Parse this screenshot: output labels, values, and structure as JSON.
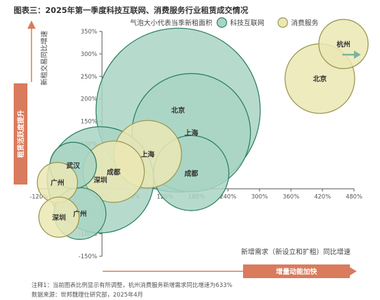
{
  "title": "图表三：2025年第一季度科技互联网、消费服务行业租赁成交情况",
  "legend": {
    "size_note": "气泡大小代表当季新租面积",
    "items": [
      "科技互联网",
      "消费服务"
    ]
  },
  "y_axis_title": "新租交易同比增速",
  "x_axis_title": "新增需求（新设立和扩租）同比增速",
  "left_banner": "租赁活跃度提升",
  "bottom_banner": "增量动能加快",
  "footnote": "注释1：当前图表比例显示有所调整，杭州消费服务新增需求同比增速为633%",
  "source": "数据来源：世邦魏理仕研究部，2025年4月",
  "colors": {
    "tech_fill": "#a9d5c4",
    "tech_stroke": "#2f7f64",
    "consumer_fill": "#ebe7b4",
    "consumer_stroke": "#9a9750",
    "banner": "#d97b5c",
    "arrow": "#7ab59b"
  },
  "chart_data": {
    "type": "scatter",
    "title": "图表三：2025年第一季度科技互联网、消费服务行业租赁成交情况",
    "xlabel": "新增需求（新设立和扩租）同比增速",
    "ylabel": "新租交易同比增速",
    "xlim": [
      -120,
      480
    ],
    "ylim": [
      -150,
      350
    ],
    "x_ticks": [
      "-120%",
      "-60%",
      "0%",
      "60%",
      "120%",
      "180%",
      "240%",
      "300%",
      "360%",
      "420%",
      "480%"
    ],
    "y_ticks": [
      "350%",
      "300%",
      "250%",
      "200%",
      "150%",
      "100%",
      "50%",
      "0%",
      "-50%",
      "-100%",
      "-150%"
    ],
    "size_legend": "气泡大小代表当季新租面积",
    "series": [
      {
        "name": "科技互联网",
        "points": [
          {
            "label": "北京",
            "x": 145,
            "y": 175,
            "size": 100
          },
          {
            "label": "上海",
            "x": 170,
            "y": 125,
            "size": 52
          },
          {
            "label": "成都",
            "x": 170,
            "y": 35,
            "size": 21
          },
          {
            "label": "武汉",
            "x": -55,
            "y": 52,
            "size": 8
          },
          {
            "label": "深圳",
            "x": -3,
            "y": 20,
            "size": 42
          },
          {
            "label": "广州",
            "x": -42,
            "y": -55,
            "size": 10
          }
        ]
      },
      {
        "name": "消费服务",
        "points": [
          {
            "label": "杭州",
            "x": 460,
            "y": 322,
            "size": 9,
            "note": "633%"
          },
          {
            "label": "北京",
            "x": 415,
            "y": 245,
            "size": 18
          },
          {
            "label": "上海",
            "x": 87,
            "y": 77,
            "size": 17
          },
          {
            "label": "成都",
            "x": 22,
            "y": 38,
            "size": 14
          },
          {
            "label": "广州",
            "x": -85,
            "y": 14,
            "size": 6
          },
          {
            "label": "深圳",
            "x": -82,
            "y": -63,
            "size": 6
          }
        ]
      }
    ]
  }
}
